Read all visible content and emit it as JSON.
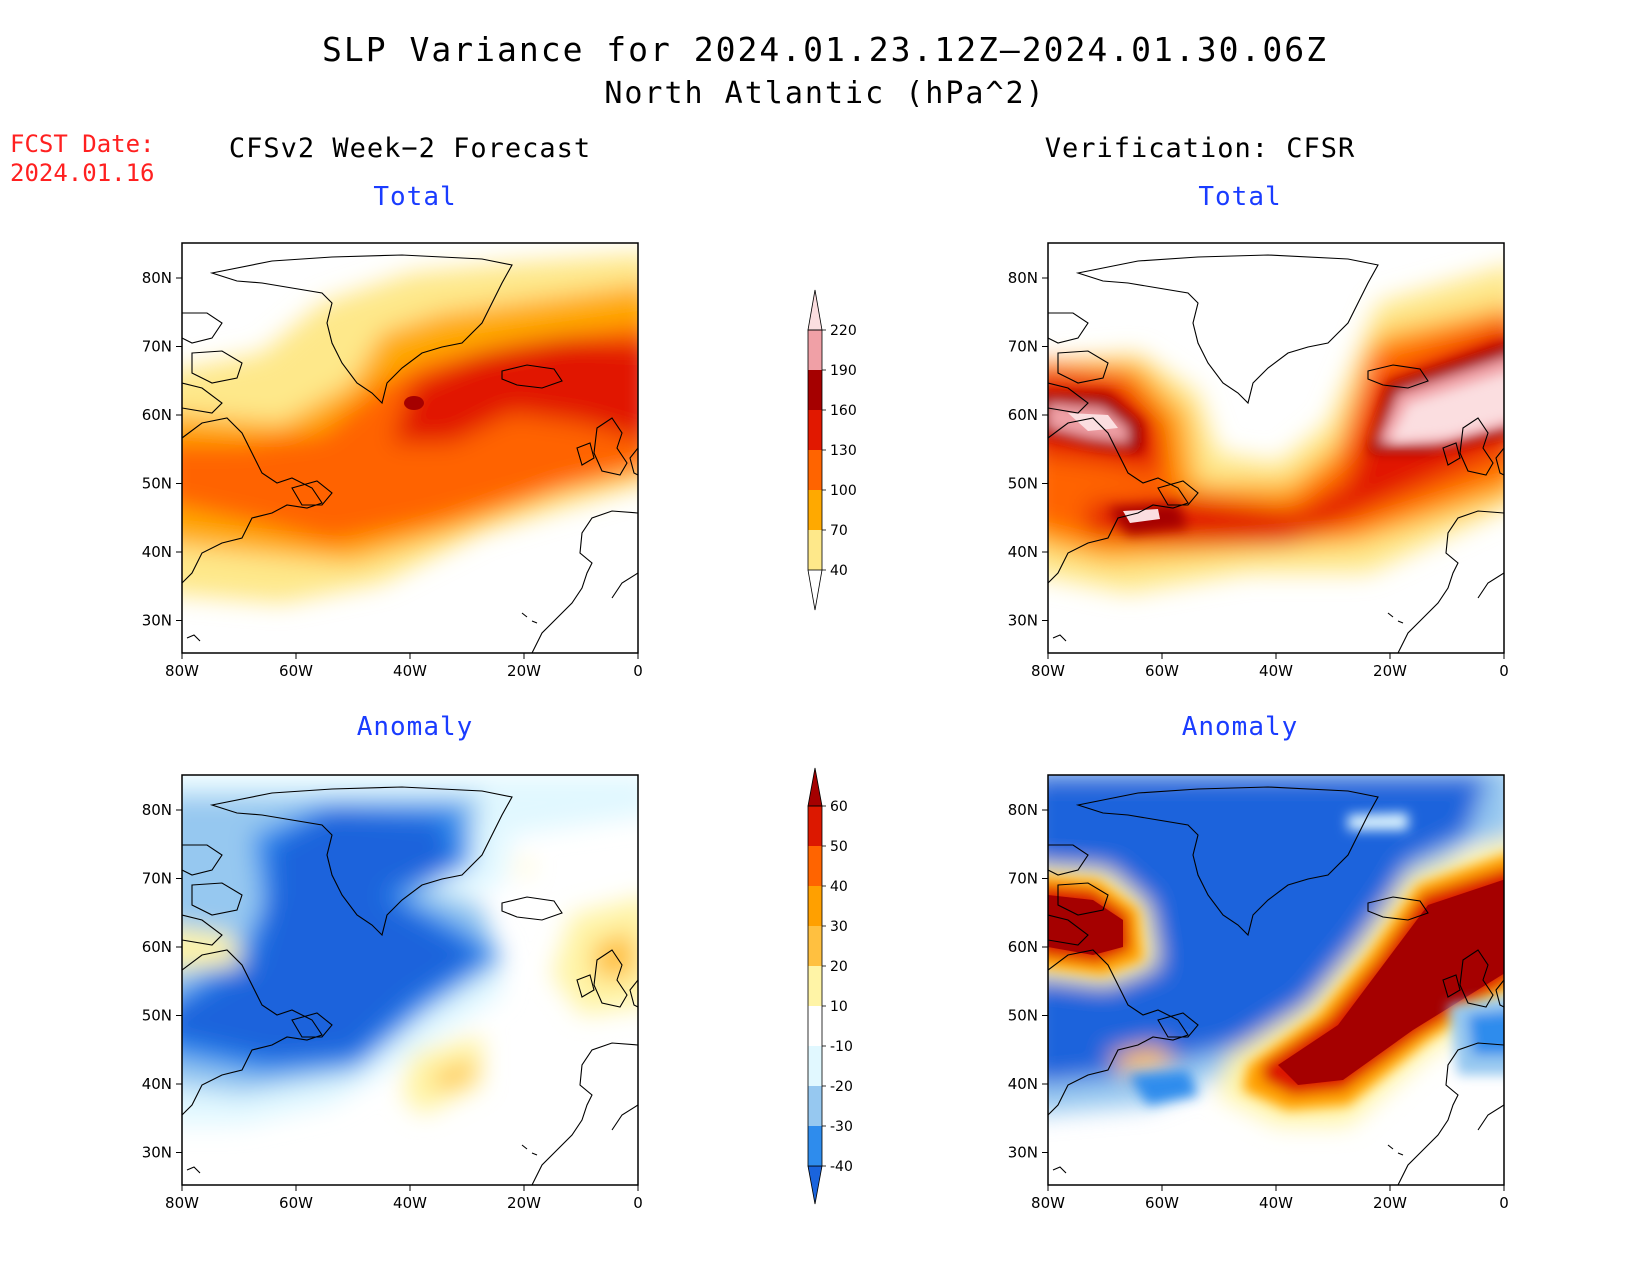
{
  "title": {
    "line1": "SLP Variance for 2024.01.23.12Z–2024.01.30.06Z",
    "line2": "North Atlantic (hPa^2)"
  },
  "fcst": {
    "label": "FCST Date:",
    "date": "2024.01.16"
  },
  "columns": {
    "left": "CFSv2 Week−2 Forecast",
    "right": "Verification: CFSR"
  },
  "panels": {
    "tl": "Total",
    "tr": "Total",
    "bl": "Anomaly",
    "br": "Anomaly"
  },
  "axes": {
    "lon_ticks": [
      "80W",
      "60W",
      "40W",
      "20W",
      "0"
    ],
    "lat_ticks": [
      "80N",
      "70N",
      "60N",
      "50N",
      "40N",
      "30N"
    ]
  },
  "colorbars": {
    "total": {
      "levels": [
        "40",
        "70",
        "100",
        "130",
        "160",
        "190",
        "220"
      ],
      "colors": [
        "#fee88a",
        "#ffa900",
        "#ff6400",
        "#e11800",
        "#a50000",
        "#f0a0a6",
        "#fbdee0"
      ]
    },
    "anomaly": {
      "levels": [
        "-40",
        "-30",
        "-20",
        "-10",
        "10",
        "20",
        "30",
        "40",
        "50",
        "60"
      ],
      "colors": [
        "#1a64dc",
        "#2e8ced",
        "#96c8f0",
        "#e1f8ff",
        "#ffffff",
        "#fff4a6",
        "#ffc040",
        "#ffa000",
        "#ff6400",
        "#dc1800",
        "#a50000"
      ]
    }
  },
  "colors": {
    "title_panel": "#1a3cff",
    "fcst_date": "#ff2020"
  }
}
